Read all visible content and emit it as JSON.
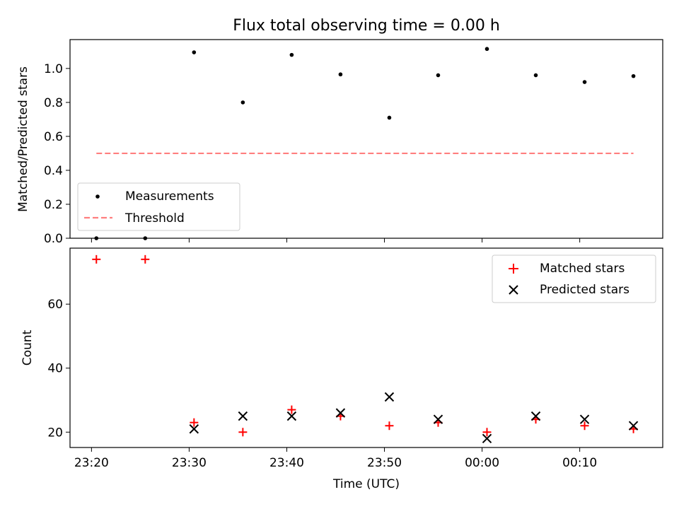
{
  "chart_data": [
    {
      "type": "scatter",
      "title": "Flux total observing time = 0.00 h",
      "xlabel": "",
      "ylabel": "Matched/Predicted stars",
      "ylim": [
        0,
        1.17
      ],
      "yticks": [
        "0.0",
        "0.2",
        "0.4",
        "0.6",
        "0.8",
        "1.0"
      ],
      "ytick_values": [
        0,
        0.2,
        0.4,
        0.6,
        0.8,
        1.0
      ],
      "series": [
        {
          "name": "Measurements",
          "marker": "dot",
          "color": "#000000",
          "x": [
            0.5,
            5.5,
            10.5,
            15.5,
            20.5,
            25.5,
            30.5,
            35.5,
            40.5,
            45.5,
            50.5,
            55.5
          ],
          "y": [
            0.0,
            0.0,
            1.095,
            0.8,
            1.08,
            0.965,
            0.71,
            0.96,
            1.115,
            0.96,
            0.92,
            0.955
          ]
        },
        {
          "name": "Threshold",
          "style": "dashed-line",
          "color": "#ff7f7f",
          "x": [
            0.5,
            55.5
          ],
          "y": [
            0.5,
            0.5
          ]
        }
      ],
      "legend": [
        "Measurements",
        "Threshold"
      ],
      "legend_position": "lower-left"
    },
    {
      "type": "scatter",
      "title": "",
      "xlabel": "Time (UTC)",
      "ylabel": "Count",
      "xlim_minutes": [
        -2.2,
        58.5
      ],
      "xtick_values": [
        0,
        10,
        20,
        30,
        40,
        50
      ],
      "xticks": [
        "23:20",
        "23:30",
        "23:40",
        "23:50",
        "00:00",
        "00:10"
      ],
      "ylim": [
        15.2,
        77.5
      ],
      "yticks": [
        "20",
        "40",
        "60"
      ],
      "ytick_values": [
        20,
        40,
        60
      ],
      "series": [
        {
          "name": "Matched stars",
          "marker": "plus",
          "color": "#ff0000",
          "x": [
            0.5,
            5.5,
            10.5,
            15.5,
            20.5,
            25.5,
            30.5,
            35.5,
            40.5,
            45.5,
            50.5,
            55.5
          ],
          "y": [
            74,
            74,
            23,
            20,
            27,
            25,
            22,
            23,
            20,
            24,
            22,
            21
          ]
        },
        {
          "name": "Predicted stars",
          "marker": "x",
          "color": "#000000",
          "x": [
            10.5,
            15.5,
            20.5,
            25.5,
            30.5,
            35.5,
            40.5,
            45.5,
            50.5,
            55.5
          ],
          "y": [
            21,
            25,
            25,
            26,
            31,
            24,
            18,
            25,
            24,
            22
          ]
        }
      ],
      "legend": [
        "Matched stars",
        "Predicted stars"
      ],
      "legend_position": "upper-right"
    }
  ]
}
